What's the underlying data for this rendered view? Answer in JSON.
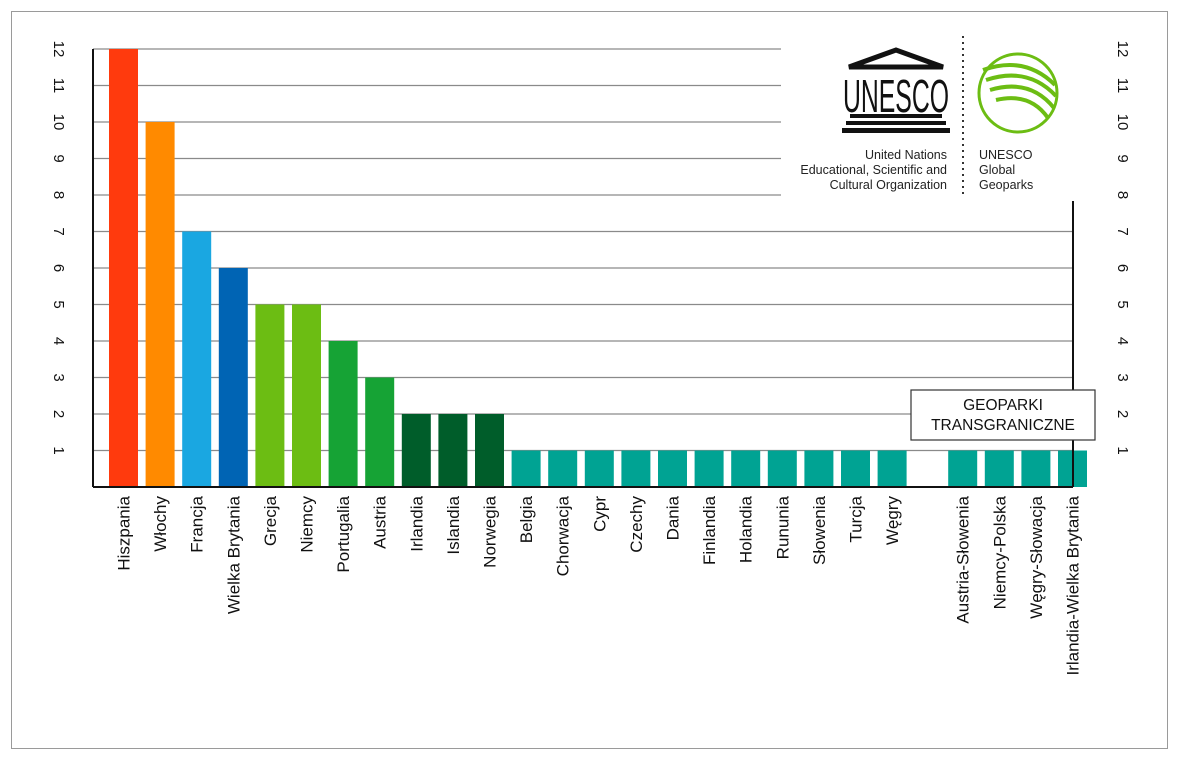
{
  "chart_data": {
    "type": "bar",
    "title": "",
    "xlabel": "",
    "ylabel": "",
    "ylim": [
      0,
      12
    ],
    "yticks": [
      1,
      2,
      3,
      4,
      5,
      6,
      7,
      8,
      9,
      10,
      11,
      12
    ],
    "grid": true,
    "legend": "none",
    "categories": [
      "Hiszpania",
      "Włochy",
      "Francja",
      "Wielka Brytania",
      "Grecja",
      "Niemcy",
      "Portugalia",
      "Austria",
      "Irlandia",
      "Islandia",
      "Norwegia",
      "Belgia",
      "Chorwacja",
      "Cypr",
      "Czechy",
      "Dania",
      "Finlandia",
      "Holandia",
      "Rununia",
      "Słowenia",
      "Turcja",
      "Węgry",
      "Austria-Słowenia",
      "Niemcy-Polska",
      "Węgry-Słowacja",
      "Irlandia-Wielka Brytania"
    ],
    "values": [
      12,
      10,
      7,
      6,
      5,
      5,
      4,
      3,
      2,
      2,
      2,
      1,
      1,
      1,
      1,
      1,
      1,
      1,
      1,
      1,
      1,
      1,
      1,
      1,
      1,
      1
    ],
    "colors": [
      "#ff3a0d",
      "#ff8a00",
      "#1aa7e1",
      "#0064b4",
      "#6cbd13",
      "#6cbd13",
      "#16a335",
      "#16a335",
      "#005d2a",
      "#005d2a",
      "#005d2a",
      "#00a393",
      "#00a393",
      "#00a393",
      "#00a393",
      "#00a393",
      "#00a393",
      "#00a393",
      "#00a393",
      "#00a393",
      "#00a393",
      "#00a393",
      "#00a393",
      "#00a393",
      "#00a393",
      "#00a393"
    ],
    "group_label": [
      "GEOPARKI",
      "TRANSGRANICZNE"
    ]
  },
  "logo": {
    "unesco_word": "UNESCO",
    "org_lines": [
      "United Nations",
      "Educational, Scientific and",
      "Cultural Organization"
    ],
    "geopark_lines": [
      "UNESCO",
      "Global",
      "Geoparks"
    ],
    "green": "#6cbd13"
  }
}
